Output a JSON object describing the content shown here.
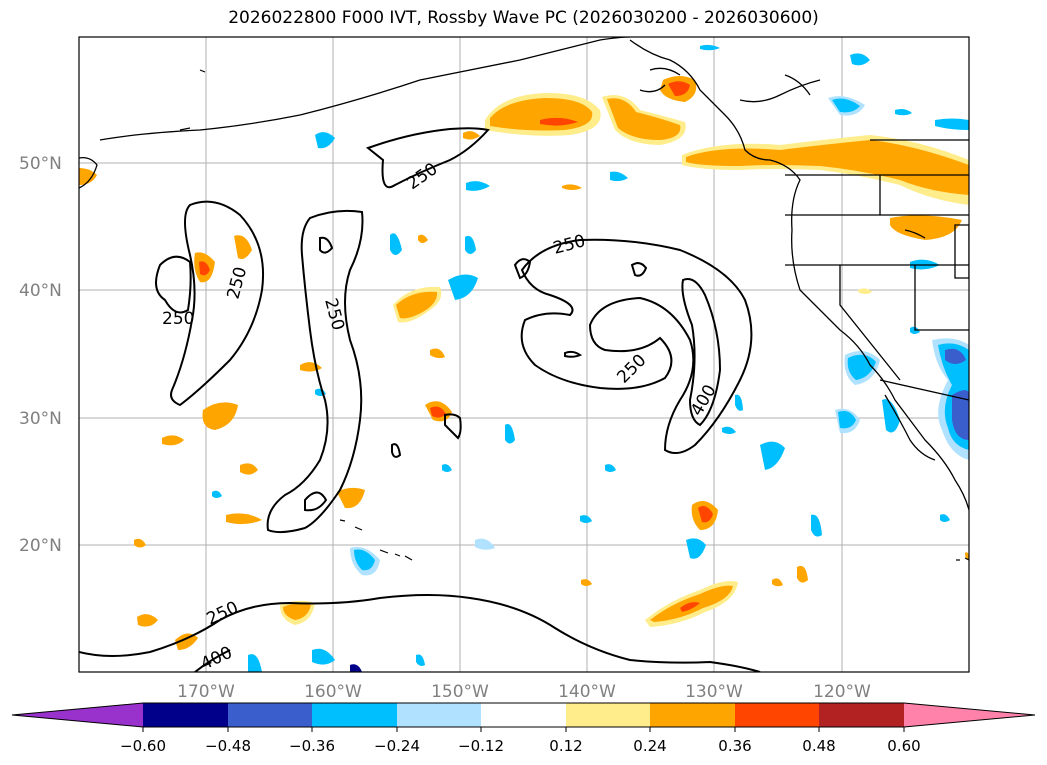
{
  "title": "2026022800 F000 IVT, Rossby Wave PC (2026030200 - 2026030600)",
  "map": {
    "lat_ticks": [
      "50°N",
      "40°N",
      "30°N",
      "20°N"
    ],
    "lon_ticks": [
      "170°W",
      "160°W",
      "150°W",
      "140°W",
      "130°W",
      "120°W"
    ],
    "contour_labels": [
      "250",
      "250",
      "250",
      "250",
      "250",
      "250",
      "400",
      "250",
      "400"
    ],
    "coast_color": "#000000",
    "grid_color": "#b0b0b0"
  },
  "colorbar": {
    "ticks": [
      "−0.60",
      "−0.48",
      "−0.36",
      "−0.24",
      "−0.12",
      "0.12",
      "0.24",
      "0.36",
      "0.48",
      "0.60"
    ],
    "colors": [
      "#9932cc",
      "#00008b",
      "#3a5fcd",
      "#00bfff",
      "#b0e2ff",
      "#ffffff",
      "#ffec8b",
      "#ffa500",
      "#ff4500",
      "#b22222",
      "#ff82ab"
    ]
  }
}
